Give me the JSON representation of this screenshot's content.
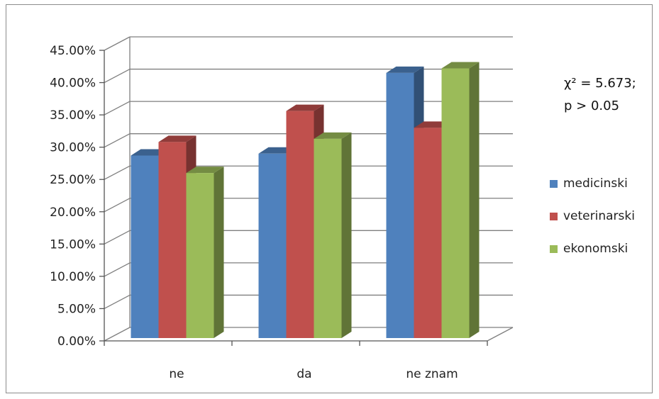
{
  "chart_data": {
    "type": "bar",
    "categories": [
      "ne",
      "da",
      "ne znam"
    ],
    "series": [
      {
        "name": "medicinski",
        "values": [
          28.7,
          29.0,
          41.5
        ],
        "color": "#4f81bd"
      },
      {
        "name": "veterinarski",
        "values": [
          30.8,
          35.6,
          33.0
        ],
        "color": "#c0504d"
      },
      {
        "name": "ekonomski",
        "values": [
          26.0,
          31.3,
          42.2
        ],
        "color": "#9bbb59"
      }
    ],
    "y_ticks": [
      "0.00%",
      "5.00%",
      "10.00%",
      "15.00%",
      "20.00%",
      "25.00%",
      "30.00%",
      "35.00%",
      "40.00%",
      "45.00%"
    ],
    "ylim": [
      0,
      45
    ],
    "title": "",
    "xlabel": "",
    "ylabel": "",
    "grid": true,
    "legend_position": "right",
    "annotation": [
      "χ² = 5.673;",
      "p > 0.05"
    ]
  }
}
